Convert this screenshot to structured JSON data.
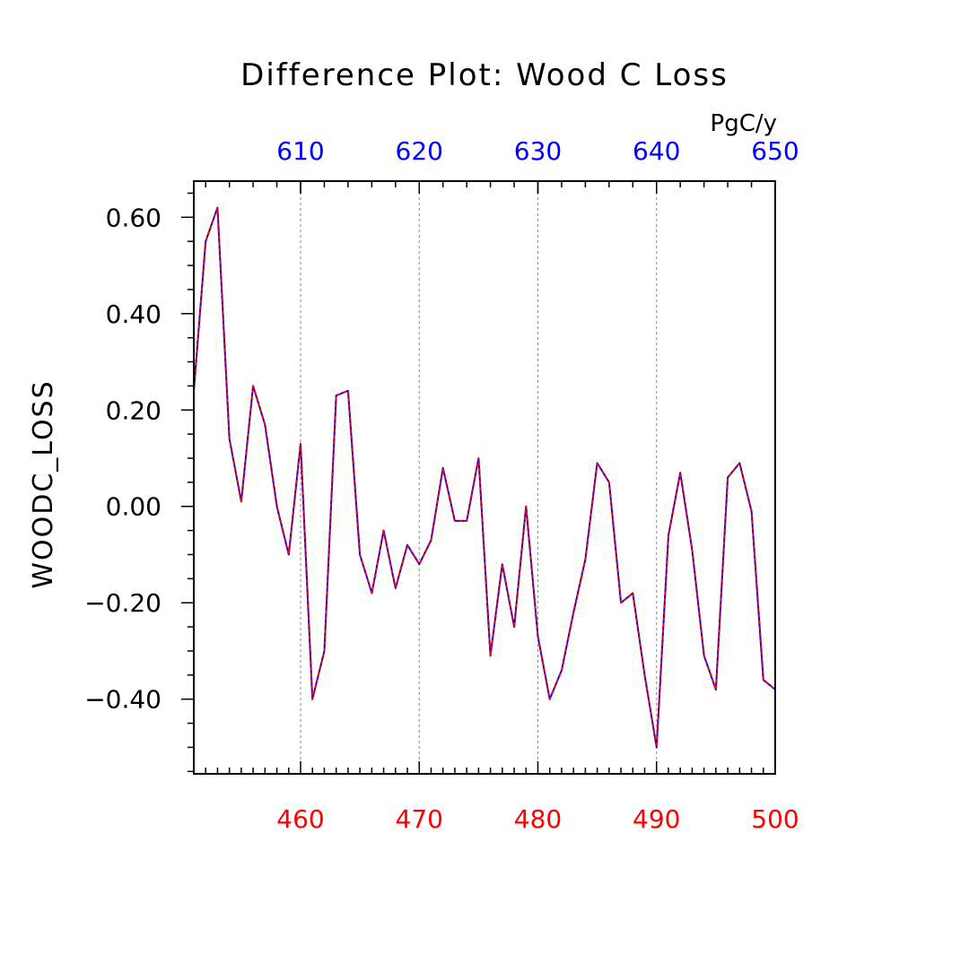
{
  "chart_data": {
    "type": "line",
    "title": "Difference Plot: Wood C Loss",
    "units": "PgC/y",
    "ylabel": "WOODC_LOSS",
    "x_bottom": {
      "ticks": [
        460,
        470,
        480,
        490,
        500
      ],
      "tick_labels": [
        "460",
        "470",
        "480",
        "490",
        "500"
      ],
      "range": [
        451,
        500
      ],
      "color": "#ff0000"
    },
    "x_top": {
      "ticks": [
        610,
        620,
        630,
        640,
        650
      ],
      "tick_labels": [
        "610",
        "620",
        "630",
        "640",
        "650"
      ],
      "range": [
        601,
        650
      ],
      "color": "#0000ff"
    },
    "y": {
      "ticks": [
        0.6,
        0.4,
        0.2,
        0.0,
        -0.2,
        -0.4
      ],
      "tick_labels": [
        "0.60",
        "0.40",
        "0.20",
        "0.00",
        "−0.20",
        "−0.40"
      ],
      "range": [
        -0.555,
        0.675
      ]
    },
    "grid": "vertical-dashed",
    "x": [
      451,
      452,
      453,
      454,
      455,
      456,
      457,
      458,
      459,
      460,
      461,
      462,
      463,
      464,
      465,
      466,
      467,
      468,
      469,
      470,
      471,
      472,
      473,
      474,
      475,
      476,
      477,
      478,
      479,
      480,
      481,
      482,
      483,
      484,
      485,
      486,
      487,
      488,
      489,
      490,
      491,
      492,
      493,
      494,
      495,
      496,
      497,
      498,
      499,
      500
    ],
    "series": [
      {
        "color": "#ff0000",
        "dash": "dashed",
        "values": [
          0.24,
          0.55,
          0.62,
          0.14,
          0.01,
          0.25,
          0.17,
          0.0,
          -0.1,
          0.13,
          -0.4,
          -0.3,
          0.23,
          0.24,
          -0.1,
          -0.18,
          -0.05,
          -0.17,
          -0.08,
          -0.12,
          -0.07,
          0.08,
          -0.03,
          -0.03,
          0.1,
          -0.31,
          -0.12,
          -0.25,
          0.0,
          -0.27,
          -0.4,
          -0.34,
          -0.22,
          -0.11,
          0.09,
          0.05,
          -0.2,
          -0.18,
          -0.35,
          -0.5,
          -0.06,
          0.07,
          -0.09,
          -0.31,
          -0.38,
          0.06,
          0.09,
          -0.01,
          -0.36,
          -0.38
        ]
      },
      {
        "color": "#0000ff",
        "dash": "solid",
        "values": [
          0.24,
          0.55,
          0.62,
          0.14,
          0.01,
          0.25,
          0.17,
          0.0,
          -0.1,
          0.13,
          -0.4,
          -0.3,
          0.23,
          0.24,
          -0.1,
          -0.18,
          -0.05,
          -0.17,
          -0.08,
          -0.12,
          -0.07,
          0.08,
          -0.03,
          -0.03,
          0.1,
          -0.31,
          -0.12,
          -0.25,
          0.0,
          -0.27,
          -0.4,
          -0.34,
          -0.22,
          -0.11,
          0.09,
          0.05,
          -0.2,
          -0.18,
          -0.35,
          -0.5,
          -0.06,
          0.07,
          -0.09,
          -0.31,
          -0.38,
          0.06,
          0.09,
          -0.01,
          -0.36,
          -0.38
        ]
      }
    ]
  }
}
